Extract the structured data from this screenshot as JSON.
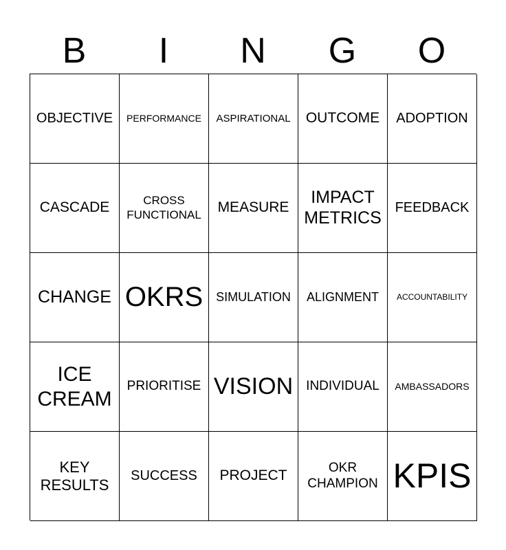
{
  "header": {
    "letters": [
      "B",
      "I",
      "N",
      "G",
      "O"
    ]
  },
  "grid": {
    "rows": [
      [
        "OBJECTIVE",
        "PERFORMANCE",
        "ASPIRATIONAL",
        "OUTCOME",
        "ADOPTION"
      ],
      [
        "CASCADE",
        "CROSS FUNCTIONAL",
        "MEASURE",
        "IMPACT METRICS",
        "FEEDBACK"
      ],
      [
        "CHANGE",
        "OKRS",
        "SIMULATION",
        "ALIGNMENT",
        "ACCOUNTABILITY"
      ],
      [
        "ICE CREAM",
        "PRIORITISE",
        "VISION",
        "INDIVIDUAL",
        "AMBASSADORS"
      ],
      [
        "KEY RESULTS",
        "SUCCESS",
        "PROJECT",
        "OKR CHAMPION",
        "KPIS"
      ]
    ]
  }
}
